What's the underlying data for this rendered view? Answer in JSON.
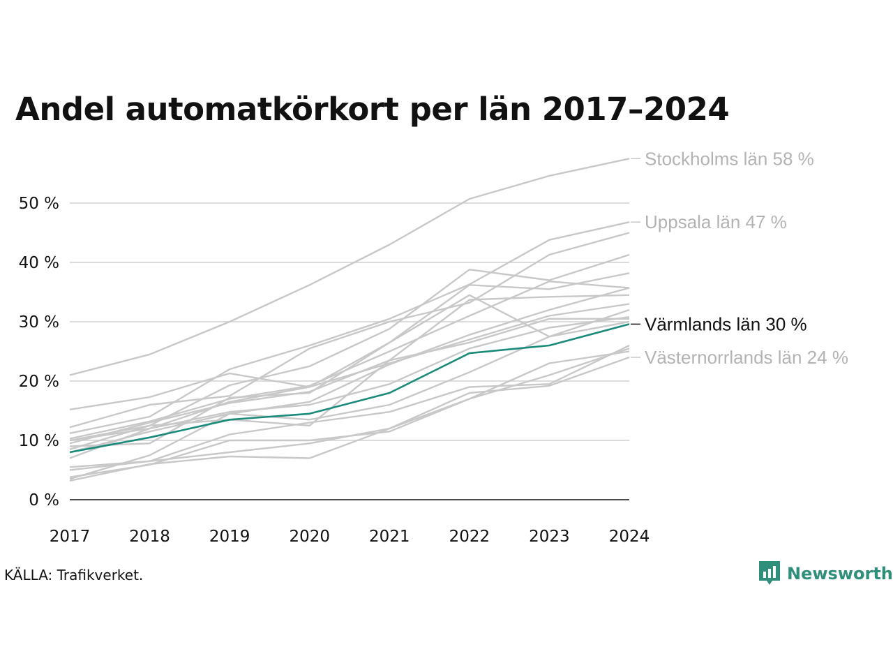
{
  "chart_data": {
    "type": "line",
    "title": "Andel automatkörkort per län 2017–2024",
    "xlabel": "",
    "ylabel": "",
    "x": [
      "2017",
      "2018",
      "2019",
      "2020",
      "2021",
      "2022",
      "2023",
      "2024"
    ],
    "ylim": [
      0,
      58
    ],
    "yticks": [
      0,
      10,
      20,
      30,
      40,
      50
    ],
    "ytick_labels": [
      "0 %",
      "10 %",
      "20 %",
      "30 %",
      "40 %",
      "50 %"
    ],
    "grid": true,
    "series": [
      {
        "label": "Stockholms län 58 %",
        "highlight": false,
        "labeled": true,
        "values": [
          21.0,
          24.5,
          30.0,
          36.2,
          43.0,
          50.7,
          54.6,
          57.5
        ]
      },
      {
        "label": "Uppsala län 47 %",
        "highlight": false,
        "labeled": true,
        "values": [
          11.2,
          14.0,
          22.0,
          26.0,
          30.5,
          36.3,
          43.8,
          46.8
        ]
      },
      {
        "label": "",
        "highlight": false,
        "labeled": false,
        "values": [
          12.2,
          16.0,
          17.5,
          25.5,
          30.0,
          33.2,
          41.3,
          45.0
        ]
      },
      {
        "label": "",
        "highlight": false,
        "labeled": false,
        "values": [
          8.5,
          12.5,
          19.3,
          22.5,
          28.8,
          38.8,
          37.0,
          41.3
        ]
      },
      {
        "label": "",
        "highlight": false,
        "labeled": false,
        "values": [
          15.2,
          17.3,
          21.3,
          19.0,
          26.5,
          36.2,
          35.5,
          38.2
        ]
      },
      {
        "label": "",
        "highlight": false,
        "labeled": false,
        "values": [
          10.3,
          13.2,
          17.0,
          19.2,
          25.0,
          31.0,
          36.8,
          35.7
        ]
      },
      {
        "label": "",
        "highlight": false,
        "labeled": false,
        "values": [
          9.5,
          13.0,
          16.3,
          18.2,
          23.5,
          33.7,
          34.2,
          34.5
        ]
      },
      {
        "label": "",
        "highlight": false,
        "labeled": false,
        "values": [
          8.0,
          11.5,
          14.5,
          16.5,
          22.8,
          27.8,
          32.0,
          35.7
        ]
      },
      {
        "label": "",
        "highlight": false,
        "labeled": false,
        "values": [
          10.0,
          12.0,
          16.5,
          19.0,
          23.0,
          27.0,
          31.0,
          33.0
        ]
      },
      {
        "label": "",
        "highlight": false,
        "labeled": false,
        "values": [
          9.0,
          9.5,
          17.2,
          18.0,
          26.5,
          34.5,
          27.5,
          32.0
        ]
      },
      {
        "label": "",
        "highlight": false,
        "labeled": false,
        "values": [
          10.0,
          12.5,
          13.5,
          12.5,
          23.5,
          26.5,
          30.5,
          30.5
        ]
      },
      {
        "label": "",
        "highlight": false,
        "labeled": false,
        "values": [
          7.0,
          12.0,
          14.8,
          16.0,
          19.5,
          25.5,
          29.0,
          30.8
        ]
      },
      {
        "label": "",
        "highlight": false,
        "labeled": false,
        "values": [
          3.5,
          7.5,
          14.5,
          13.5,
          16.0,
          21.5,
          27.5,
          30.0
        ]
      },
      {
        "label": "Värmlands län 30 %",
        "highlight": true,
        "labeled": true,
        "values": [
          8.0,
          10.5,
          13.5,
          14.5,
          18.0,
          24.7,
          26.0,
          29.6
        ]
      },
      {
        "label": "",
        "highlight": false,
        "labeled": false,
        "values": [
          5.0,
          6.5,
          11.0,
          13.0,
          14.8,
          19.0,
          19.5,
          26.0
        ]
      },
      {
        "label": "",
        "highlight": false,
        "labeled": false,
        "values": [
          5.5,
          6.5,
          8.0,
          9.5,
          12.0,
          17.0,
          23.0,
          25.0
        ]
      },
      {
        "label": "",
        "highlight": false,
        "labeled": false,
        "values": [
          3.8,
          5.9,
          10.0,
          10.0,
          11.5,
          17.0,
          21.0,
          25.5
        ]
      },
      {
        "label": "Västernorrlands län 24 %",
        "highlight": false,
        "labeled": true,
        "values": [
          3.2,
          6.0,
          7.3,
          7.0,
          12.0,
          18.0,
          19.2,
          24.0
        ]
      }
    ]
  },
  "source": "KÄLLA: Trafikverket.",
  "brand": {
    "name": "Newsworthy",
    "icon": "newsworthy-logo-icon"
  },
  "colors": {
    "highlight": "#1a8a7a",
    "muted_line": "#c8c8c8",
    "muted_label": "#b3b3b3",
    "highlight_label": "#111111",
    "grid": "#dcdcdc",
    "axis": "#111111",
    "brand": "#2f8f7b"
  }
}
